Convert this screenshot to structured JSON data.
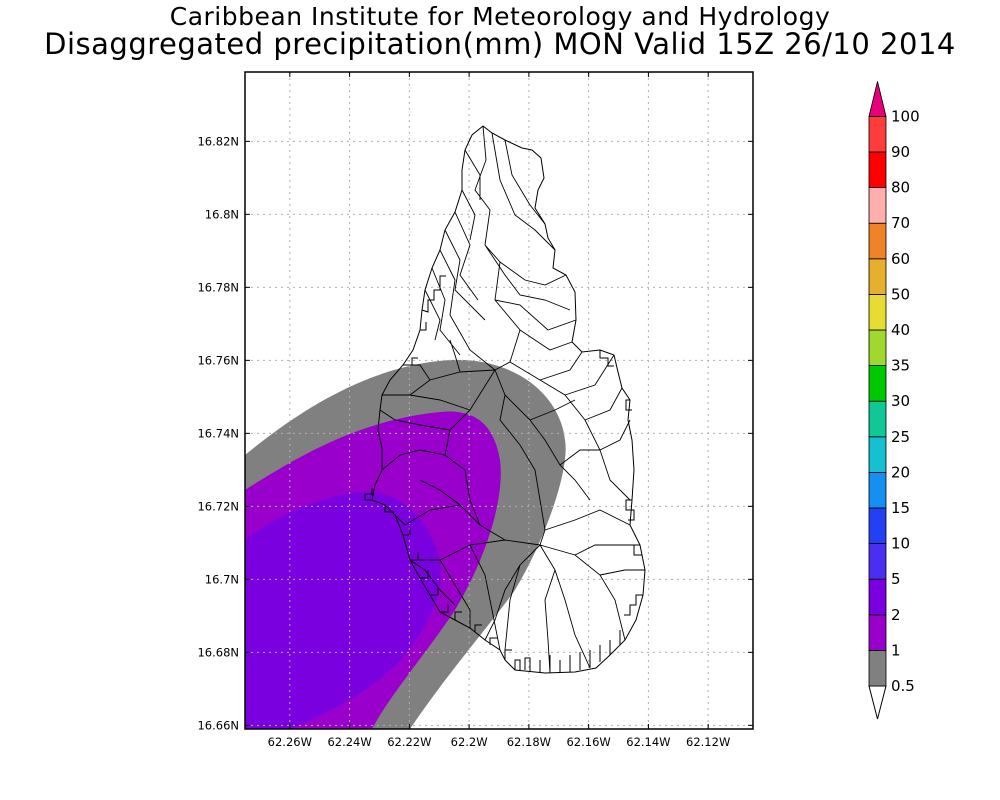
{
  "title": {
    "line1": "Caribbean Institute for Meteorology and Hydrology",
    "line2": "Disaggregated precipitation(mm) MON Valid 15Z 26/10 2014"
  },
  "map": {
    "lon_range": [
      -62.275,
      -62.105
    ],
    "lat_range": [
      16.659,
      16.839
    ],
    "lon_ticks": [
      {
        "value": -62.26,
        "label": "62.26W"
      },
      {
        "value": -62.24,
        "label": "62.24W"
      },
      {
        "value": -62.22,
        "label": "62.22W"
      },
      {
        "value": -62.2,
        "label": "62.2W"
      },
      {
        "value": -62.18,
        "label": "62.18W"
      },
      {
        "value": -62.16,
        "label": "62.16W"
      },
      {
        "value": -62.14,
        "label": "62.14W"
      },
      {
        "value": -62.12,
        "label": "62.12W"
      }
    ],
    "lat_ticks": [
      {
        "value": 16.66,
        "label": "16.66N"
      },
      {
        "value": 16.68,
        "label": "16.68N"
      },
      {
        "value": 16.7,
        "label": "16.7N"
      },
      {
        "value": 16.72,
        "label": "16.72N"
      },
      {
        "value": 16.74,
        "label": "16.74N"
      },
      {
        "value": 16.76,
        "label": "16.76N"
      },
      {
        "value": 16.78,
        "label": "16.78N"
      },
      {
        "value": 16.8,
        "label": "16.8N"
      },
      {
        "value": 16.82,
        "label": "16.82N"
      }
    ],
    "grid": "dotted",
    "precip_colors": {
      "0.5-1": "#808080",
      "1-2": "#9900cc",
      "2-5": "#7b00e0"
    }
  },
  "colorbar": {
    "levels": [
      "0.5",
      "1",
      "2",
      "5",
      "10",
      "15",
      "20",
      "25",
      "30",
      "35",
      "40",
      "50",
      "60",
      "70",
      "80",
      "90",
      "100"
    ],
    "colors": [
      "#808080",
      "#9900cc",
      "#7b00e0",
      "#4a2ef2",
      "#2440f5",
      "#1590f0",
      "#14c0d2",
      "#10c896",
      "#00c800",
      "#a0d830",
      "#e6dc32",
      "#e6af2d",
      "#f08228",
      "#ffafaf",
      "#ff0000",
      "#ff3c3c",
      "#e6007a"
    ]
  }
}
